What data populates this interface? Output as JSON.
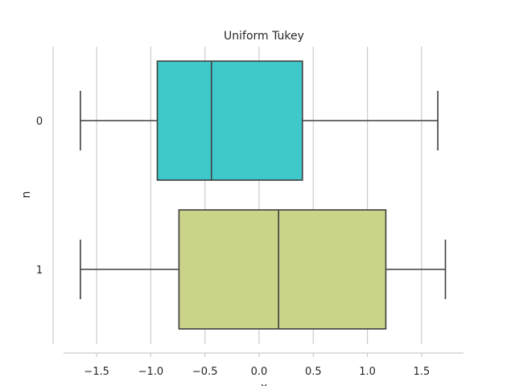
{
  "chart_data": {
    "type": "box",
    "title": "Uniform Tukey",
    "xlabel": "x",
    "ylabel": "n",
    "orientation": "horizontal",
    "xlim": [
      -1.9,
      1.9
    ],
    "xticks": [
      -1.5,
      -1.0,
      -0.5,
      0.0,
      0.5,
      1.0,
      1.5
    ],
    "xtick_labels": [
      "−1.5",
      "−1.0",
      "−0.5",
      "0.0",
      "0.5",
      "1.0",
      "1.5"
    ],
    "grid": "vertical",
    "categories": [
      "0",
      "1"
    ],
    "boxes": [
      {
        "category": "0",
        "whisker_low": -1.65,
        "q1": -0.94,
        "median": -0.44,
        "q3": 0.4,
        "whisker_high": 1.65,
        "color": "#3fc8c9"
      },
      {
        "category": "1",
        "whisker_low": -1.65,
        "q1": -0.74,
        "median": 0.18,
        "q3": 1.17,
        "whisker_high": 1.72,
        "color": "#cbd389"
      }
    ]
  }
}
